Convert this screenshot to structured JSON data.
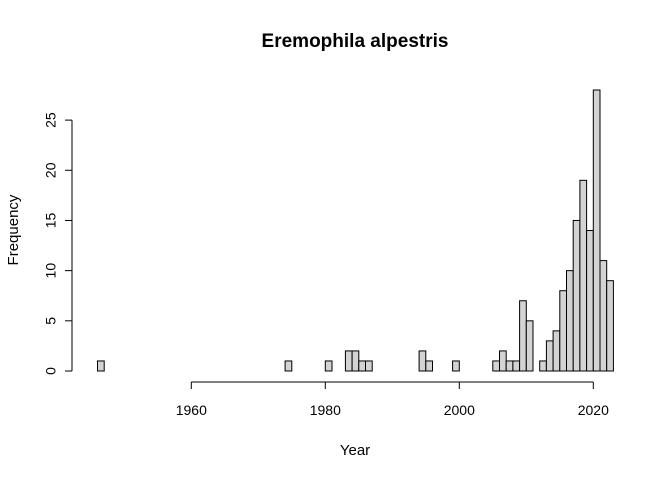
{
  "chart_data": {
    "type": "bar",
    "title": "Eremophila alpestris",
    "xlabel": "Year",
    "ylabel": "Frequency",
    "bin_width": 1,
    "x_start": 1946,
    "xlim": [
      1946,
      2023
    ],
    "ylim": [
      0,
      28
    ],
    "x_ticks": [
      1960,
      1980,
      2000,
      2020
    ],
    "y_ticks": [
      0,
      5,
      10,
      15,
      20,
      25
    ],
    "grid": false,
    "legend": "none",
    "bar_color": "#d3d3d3",
    "values": [
      1,
      0,
      0,
      0,
      0,
      0,
      0,
      0,
      0,
      0,
      0,
      0,
      0,
      0,
      0,
      0,
      0,
      0,
      0,
      0,
      0,
      0,
      0,
      0,
      0,
      0,
      0,
      0,
      1,
      0,
      0,
      0,
      0,
      0,
      1,
      0,
      0,
      2,
      2,
      1,
      1,
      0,
      0,
      0,
      0,
      0,
      0,
      0,
      2,
      1,
      0,
      0,
      0,
      1,
      0,
      0,
      0,
      0,
      0,
      1,
      2,
      1,
      1,
      7,
      5,
      0,
      1,
      3,
      4,
      8,
      10,
      15,
      19,
      14,
      28,
      11,
      9
    ]
  }
}
